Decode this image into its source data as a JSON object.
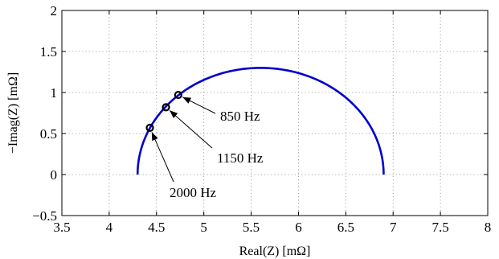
{
  "chart_data": {
    "type": "line",
    "title": "",
    "xlabel": "Real(Z) [mΩ]",
    "ylabel": "−Imag(Z) [mΩ]",
    "xlim": [
      3.5,
      8
    ],
    "ylim": [
      -0.5,
      2
    ],
    "xticks": [
      3.5,
      4,
      4.5,
      5,
      5.5,
      6,
      6.5,
      7,
      7.5,
      8
    ],
    "yticks": [
      -0.5,
      0,
      0.5,
      1,
      1.5,
      2
    ],
    "xtick_labels": [
      "3.5",
      "4",
      "4.5",
      "5",
      "5.5",
      "6",
      "6.5",
      "7",
      "7.5",
      "8"
    ],
    "ytick_labels": [
      "−0.5",
      "0",
      "0.5",
      "1",
      "1.5",
      "2"
    ],
    "grid": true,
    "series": [
      {
        "color": "#0000cc",
        "shape": "semicircle",
        "real_start": 4.3,
        "real_end": 6.9,
        "imag_peak": 1.3
      }
    ],
    "markers": [
      {
        "x": 4.43,
        "y": 0.57
      },
      {
        "x": 4.6,
        "y": 0.82
      },
      {
        "x": 4.73,
        "y": 0.97
      }
    ],
    "annotations": [
      {
        "text": "850 Hz",
        "target": [
          4.73,
          0.97
        ]
      },
      {
        "text": "1150 Hz",
        "target": [
          4.6,
          0.82
        ]
      },
      {
        "text": "2000 Hz",
        "target": [
          4.43,
          0.57
        ]
      }
    ]
  }
}
